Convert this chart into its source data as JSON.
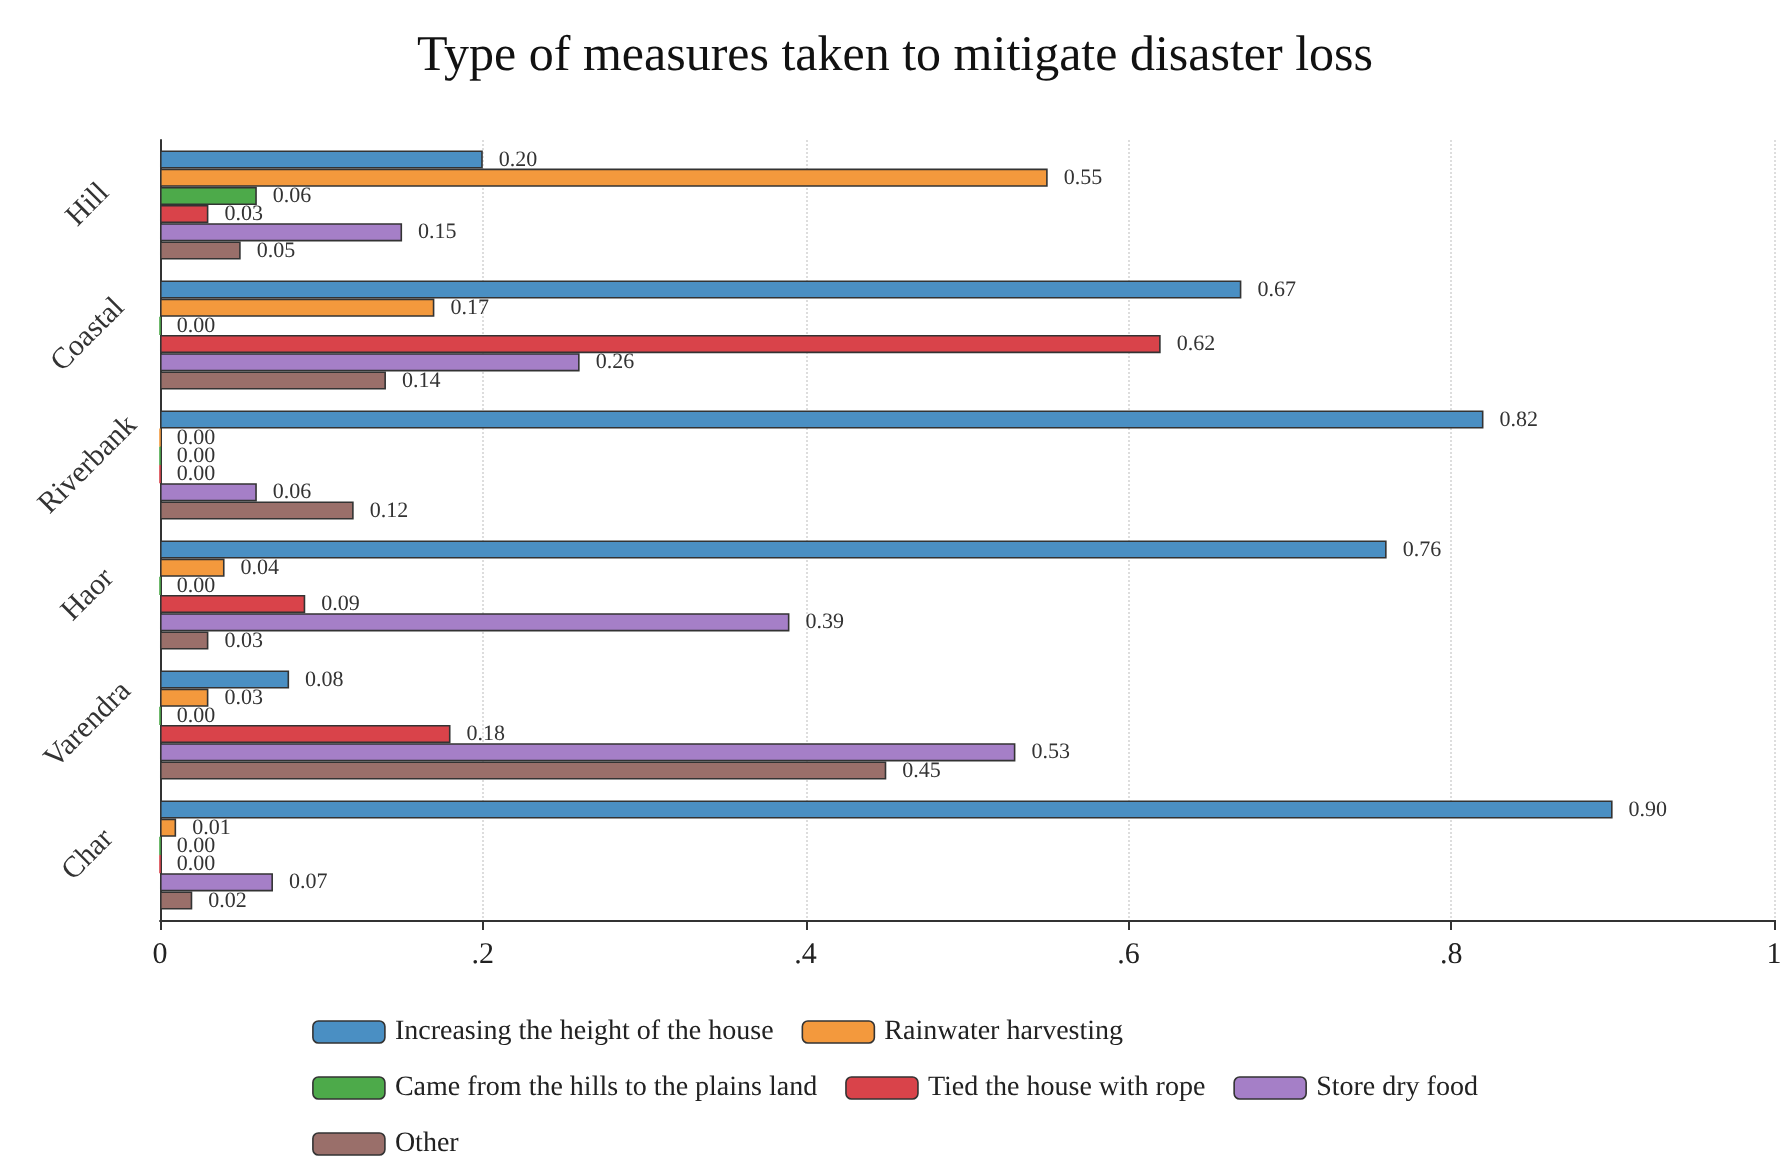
{
  "chart_data": {
    "type": "bar",
    "orientation": "horizontal",
    "title": "Type of measures taken to mitigate disaster loss",
    "categories": [
      "Hill",
      "Coastal",
      "Riverbank",
      "Haor",
      "Varendra",
      "Char"
    ],
    "series": [
      {
        "name": "Increasing the height of the house",
        "color": "#4a8fc3",
        "values": [
          0.2,
          0.67,
          0.82,
          0.76,
          0.08,
          0.9
        ],
        "value_labels": [
          "0.20",
          "0.67",
          "0.82",
          "0.76",
          "0.08",
          "0.90"
        ]
      },
      {
        "name": "Rainwater harvesting",
        "color": "#f3993d",
        "values": [
          0.55,
          0.17,
          0.0,
          0.04,
          0.03,
          0.01
        ],
        "value_labels": [
          "0.55",
          "0.17",
          "0.00",
          "0.04",
          "0.03",
          "0.01"
        ]
      },
      {
        "name": "Came from the hills to the plains land",
        "color": "#4daa4a",
        "values": [
          0.06,
          0.0,
          0.0,
          0.0,
          0.0,
          0.0
        ],
        "value_labels": [
          "0.06",
          "0.00",
          "0.00",
          "0.00",
          "0.00",
          "0.00"
        ]
      },
      {
        "name": "Tied the house with rope",
        "color": "#d9434a",
        "values": [
          0.03,
          0.62,
          0.0,
          0.09,
          0.18,
          0.0
        ],
        "value_labels": [
          "0.03",
          "0.62",
          "0.00",
          "0.09",
          "0.18",
          "0.00"
        ]
      },
      {
        "name": "Store dry food",
        "color": "#a57fc7",
        "values": [
          0.15,
          0.26,
          0.06,
          0.39,
          0.53,
          0.07
        ],
        "value_labels": [
          "0.15",
          "0.26",
          "0.06",
          "0.39",
          "0.53",
          "0.07"
        ]
      },
      {
        "name": "Other",
        "color": "#9a6f6a",
        "values": [
          0.05,
          0.14,
          0.12,
          0.03,
          0.45,
          0.02
        ],
        "value_labels": [
          "0.05",
          "0.14",
          "0.12",
          "0.03",
          "0.45",
          "0.02"
        ]
      }
    ],
    "xlim": [
      0,
      1
    ],
    "xticks": [
      0,
      {
        "value": 0.2,
        "label": ".2"
      },
      {
        "value": 0.4,
        "label": ".4"
      },
      {
        "value": 0.6,
        "label": ".6"
      },
      {
        "value": 0.8,
        "label": ".8"
      },
      1
    ],
    "grid": "x",
    "legend": "bottom"
  }
}
